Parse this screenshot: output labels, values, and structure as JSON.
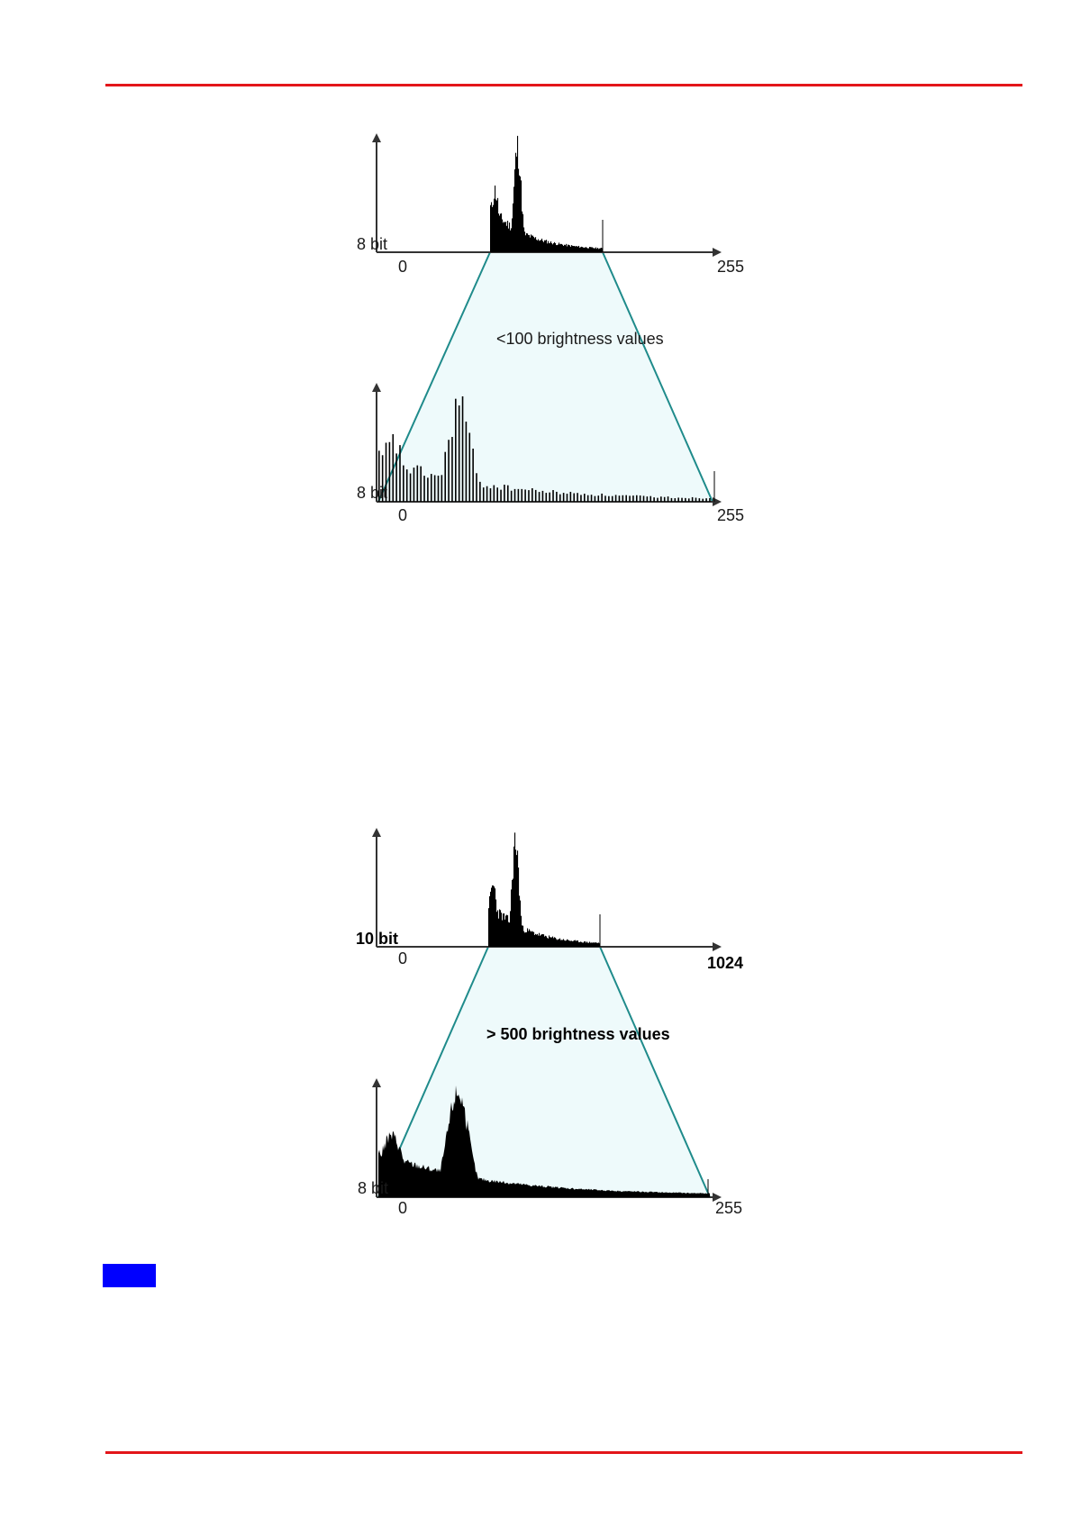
{
  "colors": {
    "rule": "#e3151a",
    "funnel_fill": "#eefafb",
    "funnel_stroke": "#1f8b8b",
    "histogram": "#000000",
    "axis": "#333333",
    "note_marker": "#0000ff"
  },
  "figure1": {
    "top": {
      "bit_label": "8 bit",
      "x_min": "0",
      "x_max": "255"
    },
    "caption": "<100 brightness values",
    "bottom": {
      "bit_label": "8 bit",
      "x_min": "0",
      "x_max": "255"
    }
  },
  "figure2": {
    "top": {
      "bit_label": "10 bit",
      "x_min": "0",
      "x_max": "1024"
    },
    "caption": "> 500 brightness values",
    "bottom": {
      "bit_label": "8 bit",
      "x_min": "0",
      "x_max": "255"
    }
  }
}
